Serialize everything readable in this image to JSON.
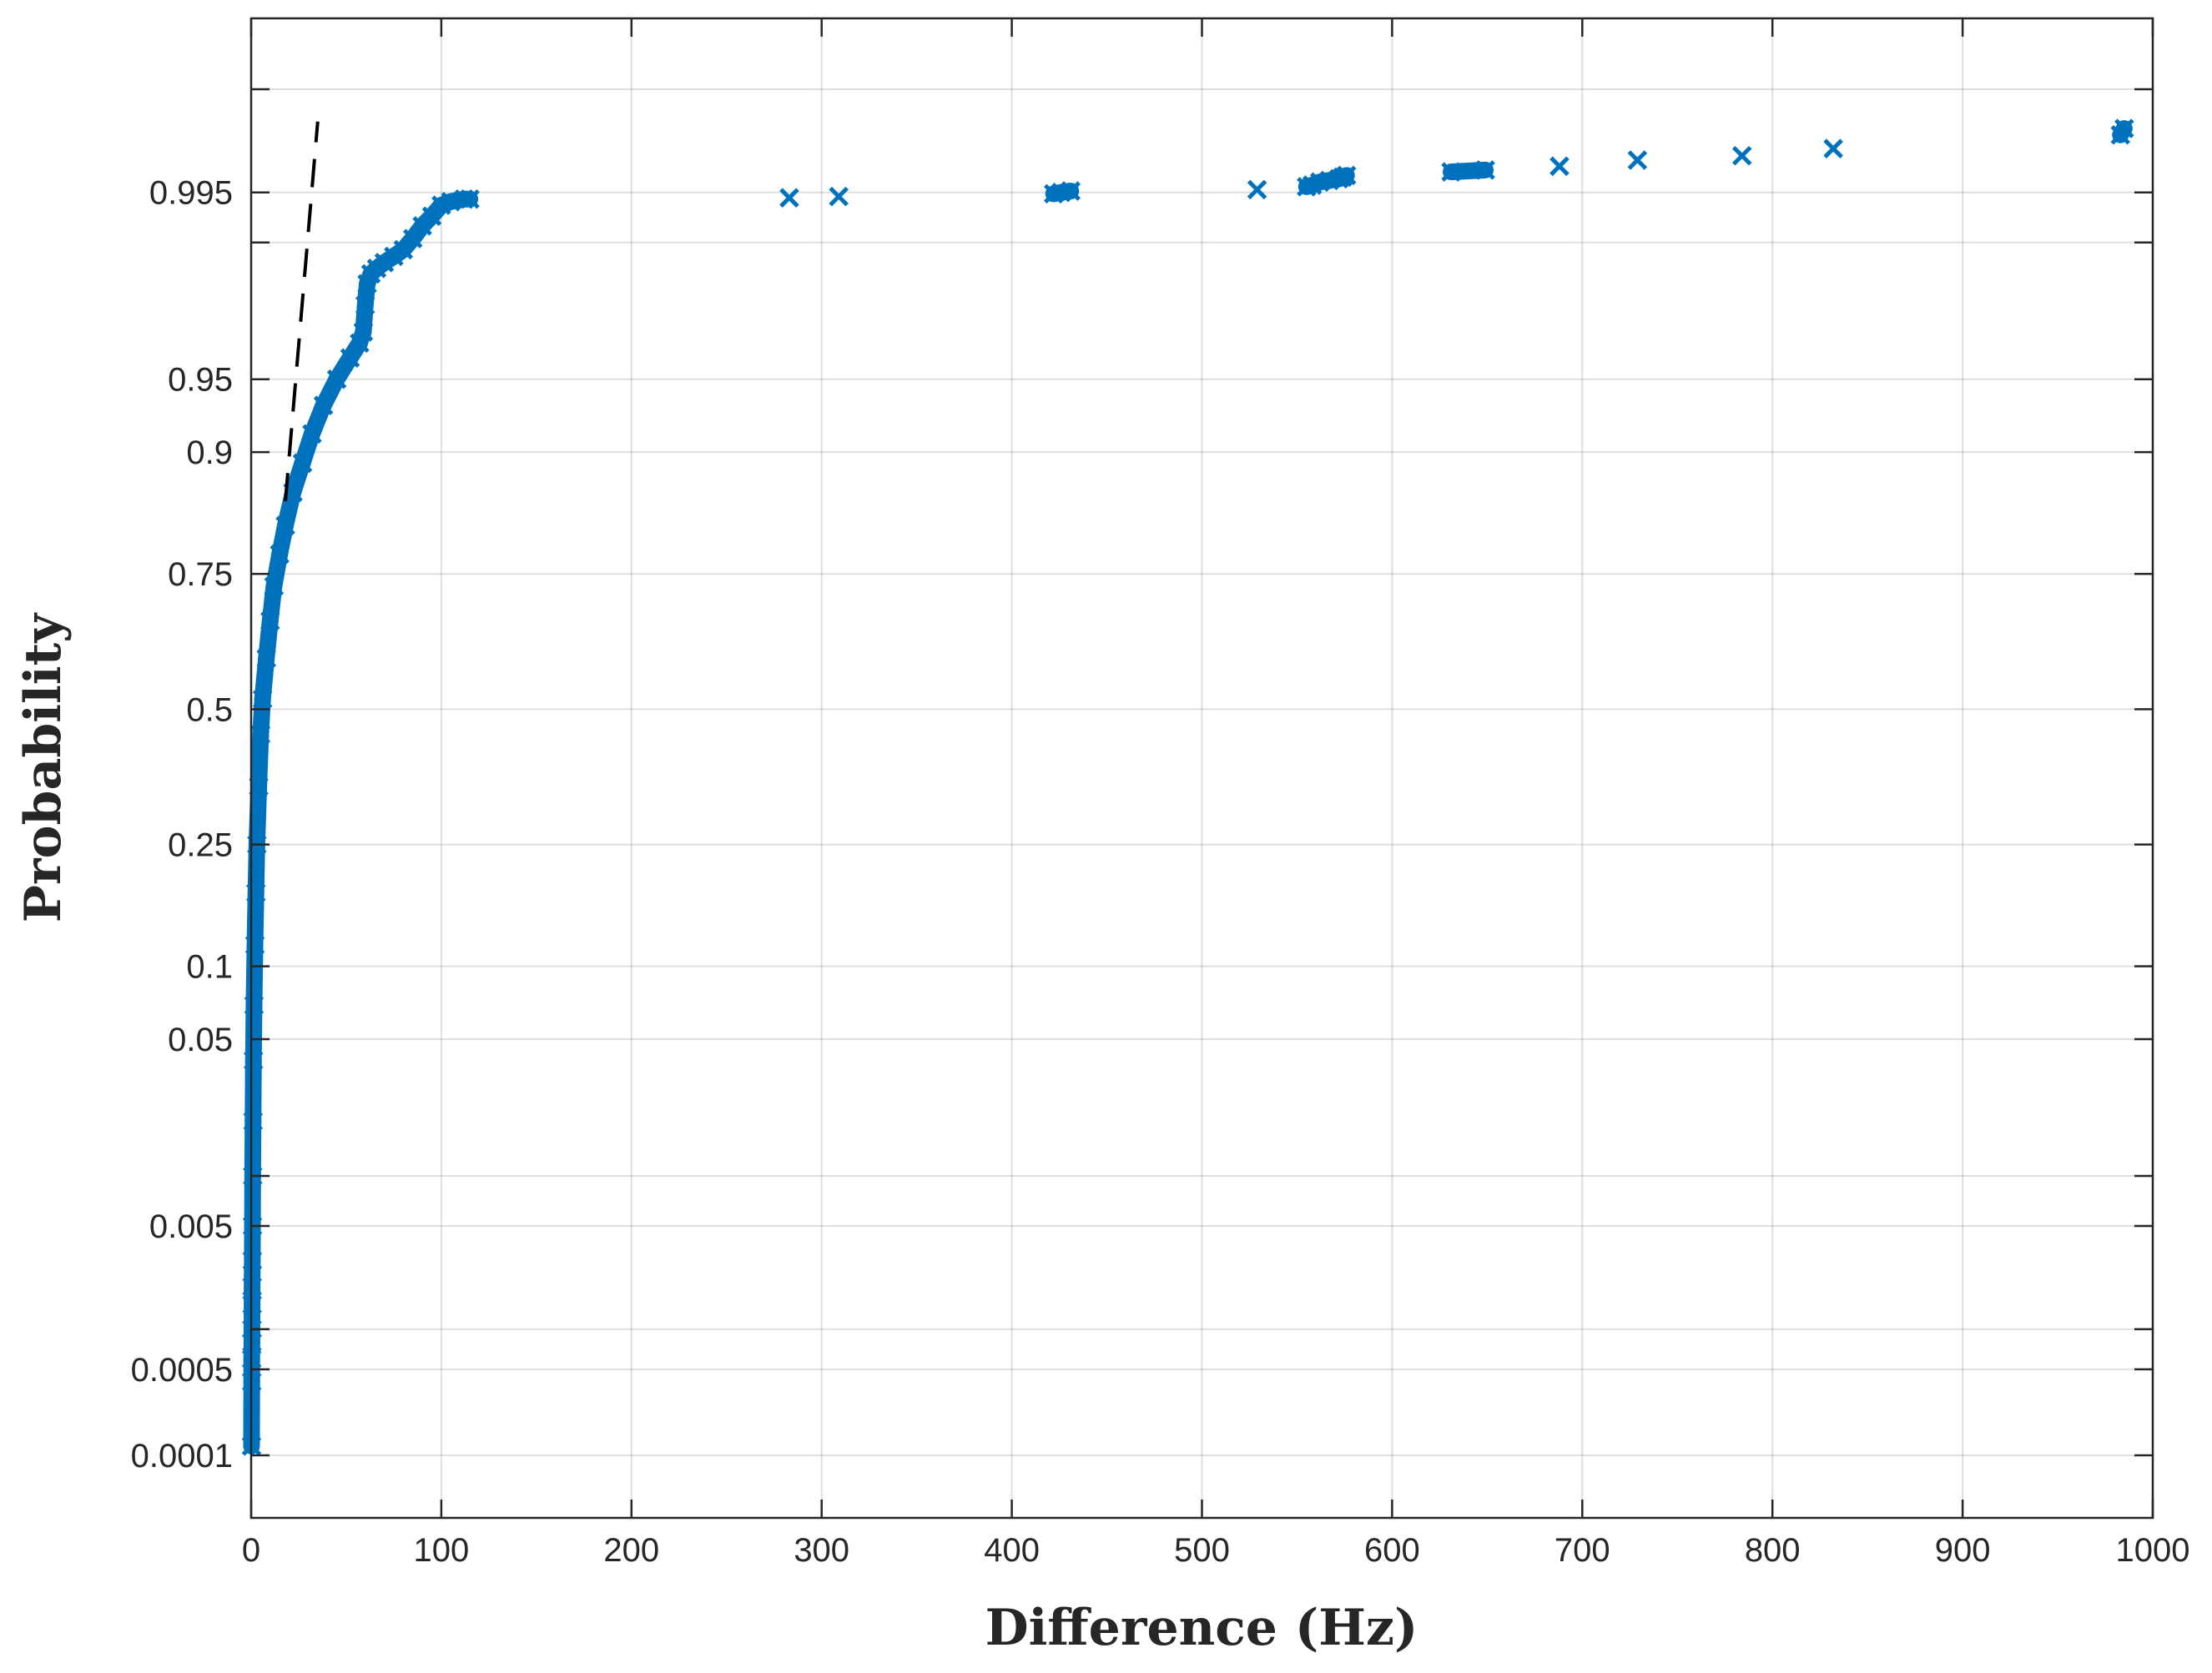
{
  "chart_data": {
    "type": "scatter",
    "title": "",
    "xlabel": "Difference (Hz)",
    "ylabel": "Probability",
    "xlim": [
      0,
      1000
    ],
    "x_ticks": [
      0,
      100,
      200,
      300,
      400,
      500,
      600,
      700,
      800,
      900,
      1000
    ],
    "x_tick_labels": [
      "0",
      "100",
      "200",
      "300",
      "400",
      "500",
      "600",
      "700",
      "800",
      "900",
      "1000"
    ],
    "y_scale": "normal-probability",
    "y_ticks": [
      0.0001,
      0.0005,
      0.001,
      0.005,
      0.01,
      0.05,
      0.1,
      0.25,
      0.5,
      0.75,
      0.9,
      0.95,
      0.99,
      0.995,
      0.999
    ],
    "y_tick_labels": [
      "0.0001",
      "0.0005",
      "",
      "0.005",
      "",
      "0.05",
      "0.1",
      "0.25",
      "0.5",
      "0.75",
      "0.9",
      "0.95",
      "",
      "0.995",
      ""
    ],
    "grid": true,
    "marker": "x",
    "marker_color": "#0072BD",
    "reference_line_color": "#000000",
    "series": [
      {
        "style": "markers",
        "x": [
          0.2,
          0.3,
          0.3,
          0.4,
          0.4,
          0.5,
          0.5,
          0.6,
          0.7,
          0.8,
          1.0,
          1.2,
          1.5,
          2.0,
          2.5,
          3.0,
          4.0,
          5.0,
          6.0,
          8.0,
          10.0,
          12.0,
          15.0,
          18.0,
          22.0,
          27.0,
          32.0,
          38.0,
          45.0,
          52.0,
          57.0,
          59.0,
          60.0,
          61.0,
          63.0,
          66.0,
          70.0,
          75.0,
          80.0,
          85.0,
          90.0,
          95.0,
          100.0,
          105.0,
          112.0,
          115.0,
          283.0,
          309.0,
          422.0,
          426.0,
          431.0,
          529.0,
          555.0,
          558.0,
          562.0,
          567.0,
          572.0,
          574.0,
          576.0,
          631.0,
          649.0,
          688.0,
          729.0,
          784.0,
          832.0,
          983.0,
          985.0
        ],
        "y": [
          0.00012,
          0.0004,
          0.0006,
          0.0008,
          0.001,
          0.0015,
          0.002,
          0.003,
          0.005,
          0.01,
          0.02,
          0.04,
          0.07,
          0.12,
          0.18,
          0.25,
          0.35,
          0.45,
          0.52,
          0.6,
          0.67,
          0.73,
          0.78,
          0.82,
          0.86,
          0.89,
          0.915,
          0.935,
          0.95,
          0.96,
          0.966,
          0.97,
          0.978,
          0.983,
          0.985,
          0.986,
          0.987,
          0.988,
          0.989,
          0.9905,
          0.992,
          0.993,
          0.994,
          0.9943,
          0.9945,
          0.9945,
          0.9946,
          0.9947,
          0.9949,
          0.995,
          0.9951,
          0.9952,
          0.9954,
          0.9955,
          0.9957,
          0.9958,
          0.9959,
          0.996,
          0.9961,
          0.9963,
          0.9964,
          0.9966,
          0.9969,
          0.9971,
          0.9974,
          0.9979,
          0.9981
        ]
      },
      {
        "style": "dashed-line",
        "x": [
          18,
          35
        ],
        "y": [
          0.85,
          0.9983
        ]
      }
    ]
  }
}
